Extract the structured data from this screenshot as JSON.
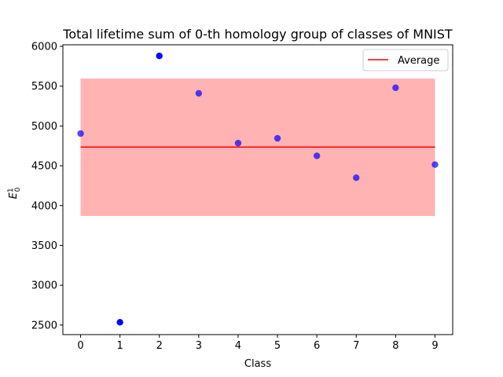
{
  "chart_data": {
    "type": "scatter",
    "title": "Total lifetime sum of 0-th homology group of classes of MNIST",
    "xlabel": "Class",
    "ylabel": "E",
    "ylabel_sup": "1",
    "ylabel_sub": "0",
    "x": [
      0,
      1,
      2,
      3,
      4,
      5,
      6,
      7,
      8,
      9
    ],
    "values": [
      4905,
      2535,
      5880,
      5410,
      4785,
      4845,
      4625,
      4350,
      5480,
      4515
    ],
    "xlim": [
      -0.45,
      9.45
    ],
    "ylim": [
      2380,
      6020
    ],
    "xticks": [
      0,
      1,
      2,
      3,
      4,
      5,
      6,
      7,
      8,
      9
    ],
    "yticks": [
      2500,
      3000,
      3500,
      4000,
      4500,
      5000,
      5500,
      6000
    ],
    "average": 4735,
    "band": [
      3870,
      5595
    ],
    "legend": {
      "label": "Average",
      "placement": "top-right"
    },
    "grid": false,
    "colors": {
      "points": "#0000ff",
      "average": "#ff0000",
      "band": "#ffb3b3"
    }
  }
}
